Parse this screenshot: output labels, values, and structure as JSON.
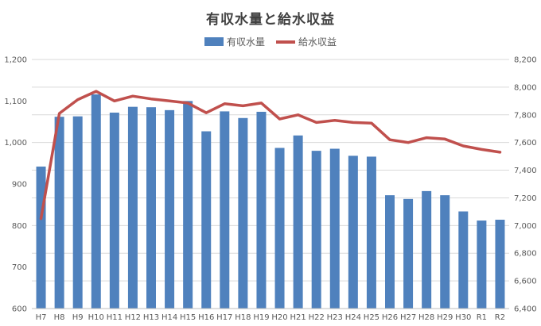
{
  "colors": {
    "bar": "#4f81bd",
    "line": "#c0504d",
    "grid": "#d9d9d9",
    "axis": "#bfbfbf"
  },
  "chart_data": {
    "type": "bar",
    "title": "有収水量と給水収益",
    "legend_position": "top",
    "grid": true,
    "categories": [
      "H7",
      "H8",
      "H9",
      "H10",
      "H11",
      "H12",
      "H13",
      "H14",
      "H15",
      "H16",
      "H17",
      "H18",
      "H19",
      "H20",
      "H21",
      "H22",
      "H23",
      "H24",
      "H25",
      "H26",
      "H27",
      "H28",
      "H29",
      "H30",
      "R1",
      "R2"
    ],
    "series": [
      {
        "name": "有収水量",
        "type": "bar",
        "axis": "left",
        "values": [
          942,
          1062,
          1063,
          1116,
          1072,
          1086,
          1085,
          1078,
          1100,
          1027,
          1075,
          1059,
          1074,
          987,
          1017,
          980,
          985,
          968,
          966,
          873,
          864,
          883,
          873,
          834,
          812,
          814
        ]
      },
      {
        "name": "給水収益",
        "type": "line",
        "axis": "right",
        "values": [
          7050,
          7810,
          7910,
          7970,
          7900,
          7935,
          7915,
          7900,
          7885,
          7815,
          7880,
          7865,
          7885,
          7770,
          7800,
          7745,
          7760,
          7745,
          7740,
          7620,
          7600,
          7635,
          7625,
          7575,
          7550,
          7530
        ]
      }
    ],
    "left_axis": {
      "min": 600,
      "max": 1200,
      "ticks": [
        "600",
        "700",
        "800",
        "900",
        "1,000",
        "1,100",
        "1,200"
      ]
    },
    "right_axis": {
      "min": 6400,
      "max": 8200,
      "ticks": [
        "6,400",
        "6,600",
        "6,800",
        "7,000",
        "7,200",
        "7,400",
        "7,600",
        "7,800",
        "8,000",
        "8,200"
      ]
    }
  }
}
